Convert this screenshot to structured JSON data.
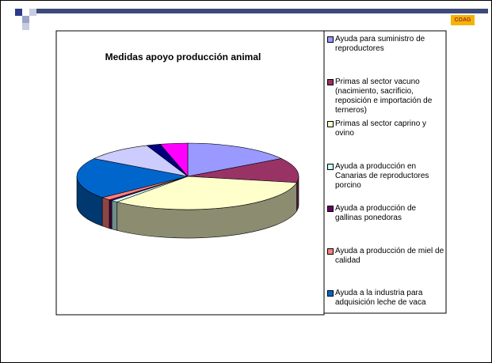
{
  "logo": "COAG",
  "chart_data": {
    "type": "pie",
    "title": "Medidas apoyo producción animal",
    "categories": [
      "Ayuda para suministro de reproductores",
      "Primas al sector vacuno (nacimiento, sacrificio, reposición e importación de terneros)",
      "Primas al sector caprino y ovino",
      "Ayuda a producción en Canarias de reproductores porcino",
      "Ayuda a producción de gallinas ponedoras",
      "Ayuda a producción de miel de calidad",
      "Ayuda a la industria para adquisición leche de vaca",
      null,
      null,
      null
    ],
    "values": [
      16,
      12,
      33,
      1,
      0.5,
      1.5,
      20,
      10,
      2,
      4
    ],
    "colors": [
      "#9999ff",
      "#993366",
      "#ffffcc",
      "#ccffff",
      "#660066",
      "#ff8080",
      "#0066cc",
      "#ccccff",
      "#000080",
      "#ff00ff"
    ],
    "legend": "right"
  }
}
